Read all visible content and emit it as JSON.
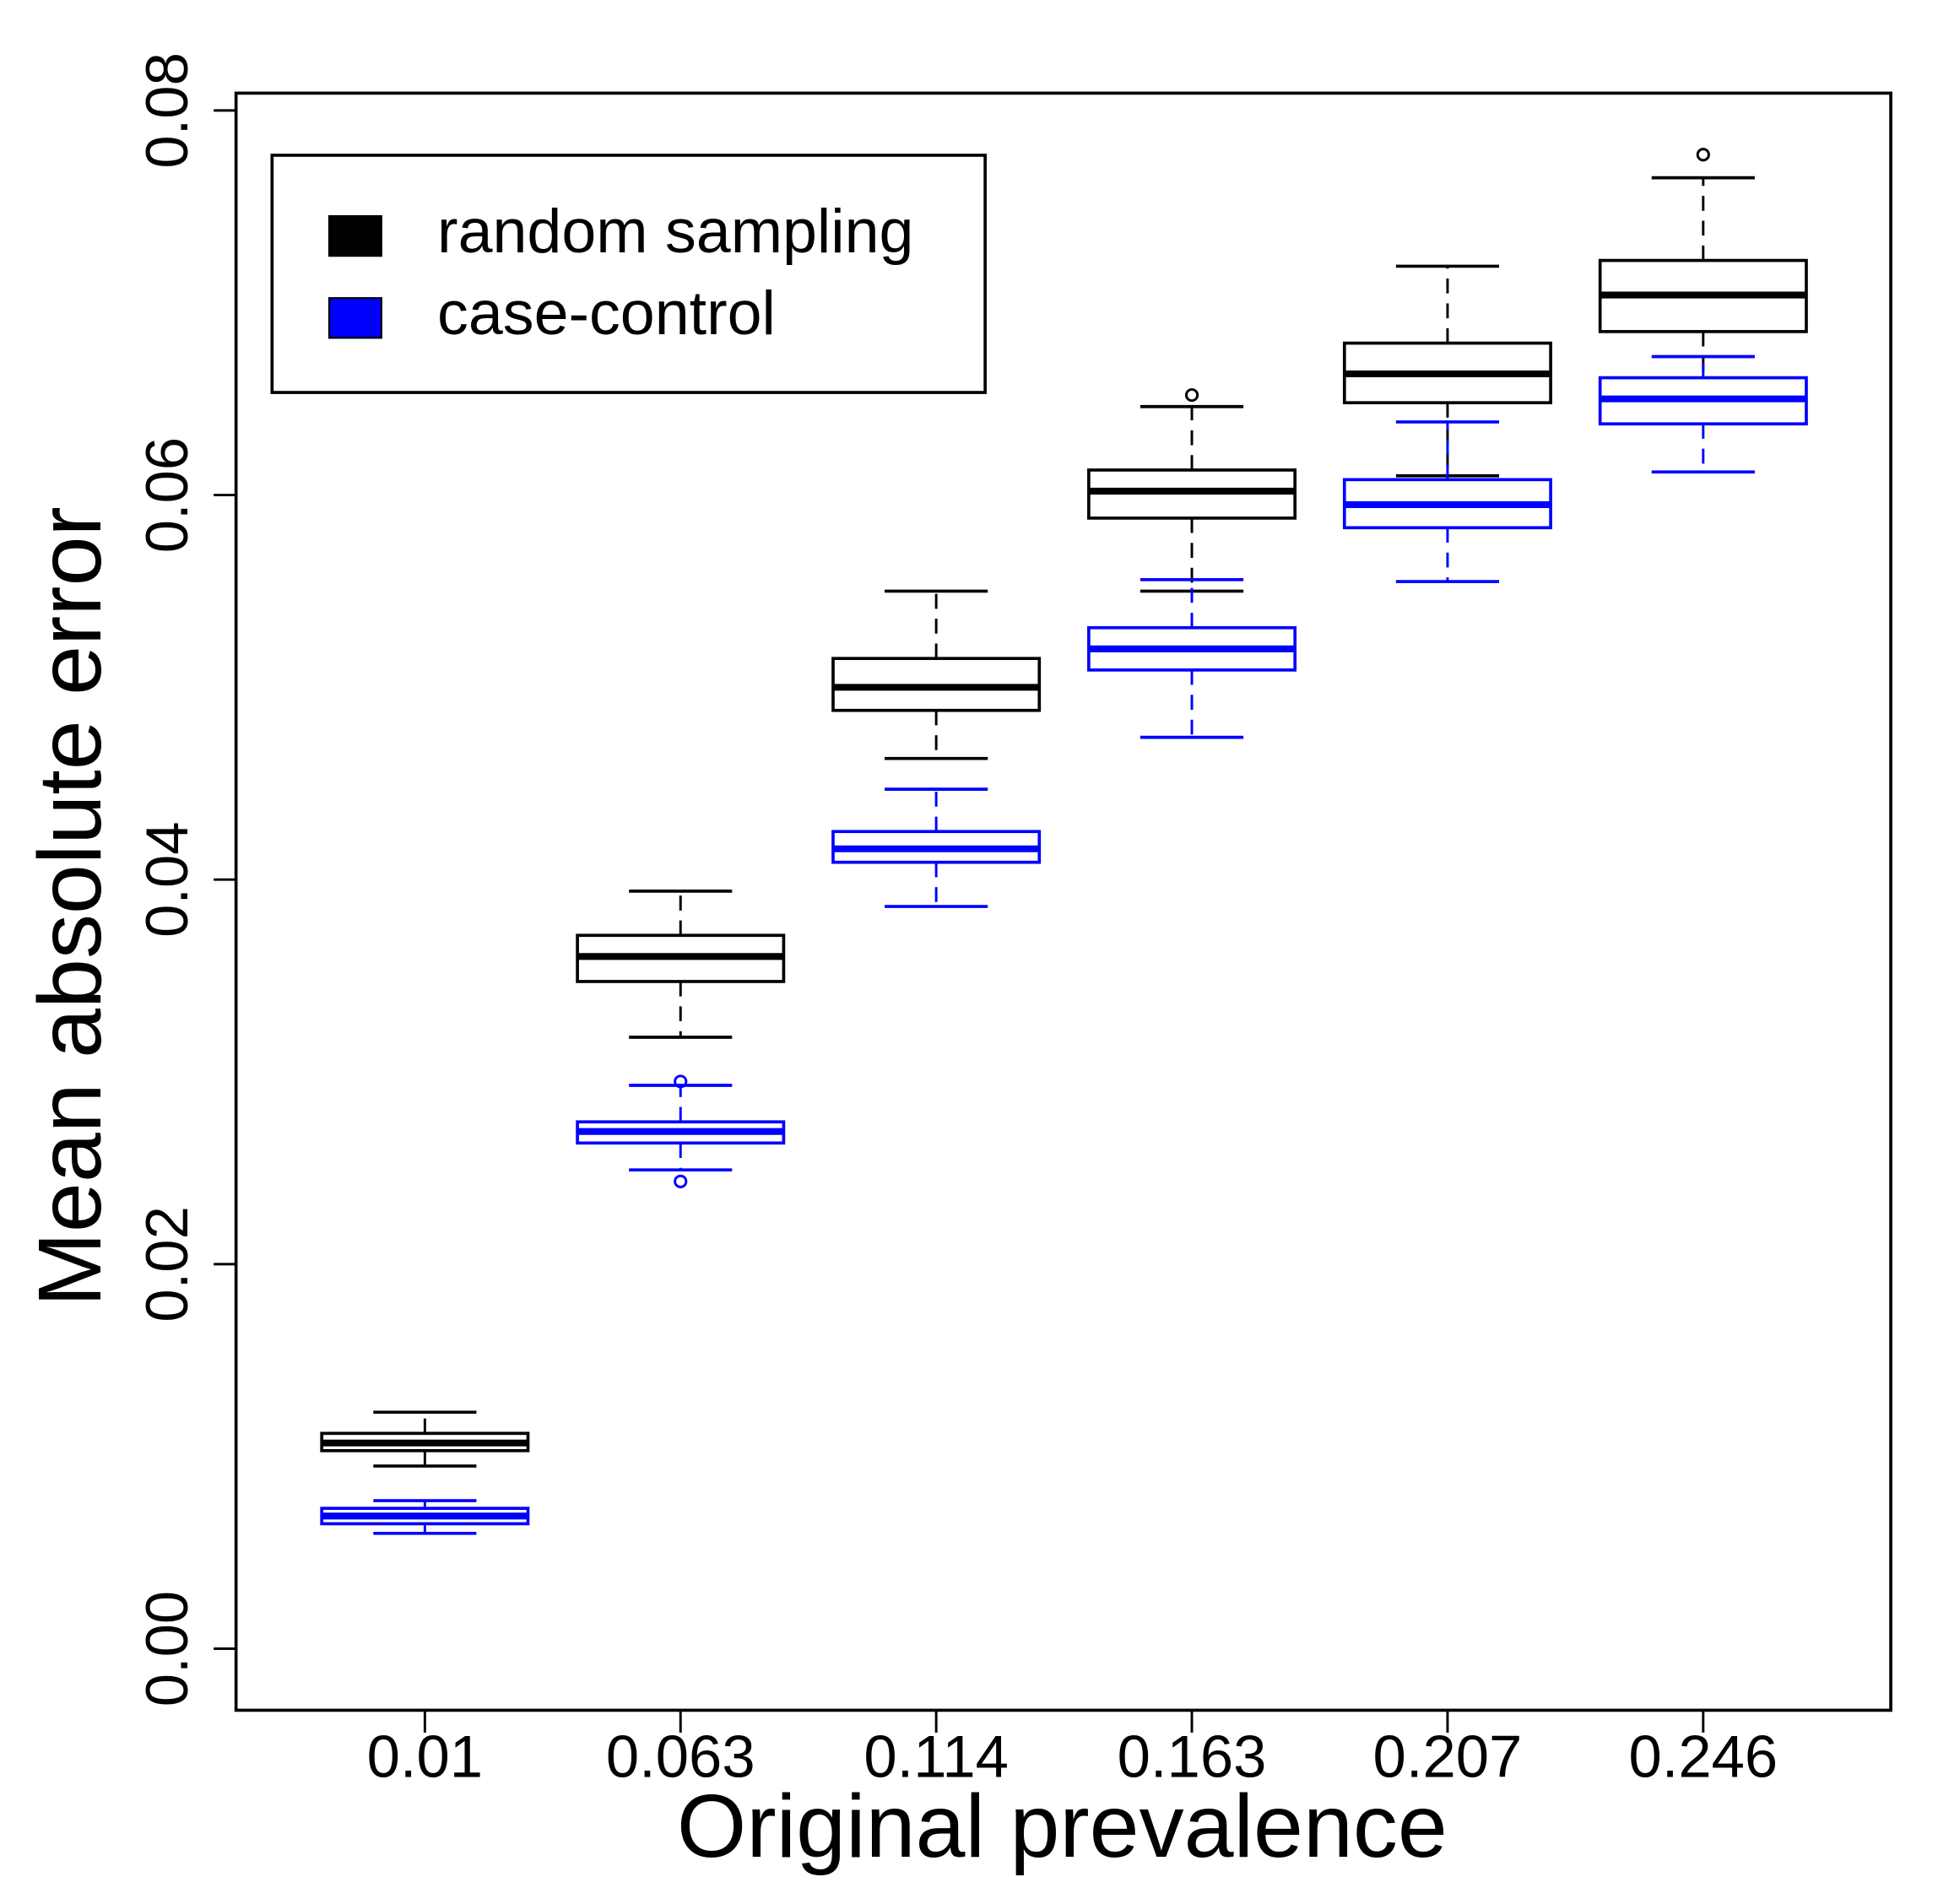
{
  "chart_data": {
    "type": "boxplot",
    "x_label": "Original prevalence",
    "y_label": "Mean absolute error",
    "categories": [
      "0.01",
      "0.063",
      "0.114",
      "0.163",
      "0.207",
      "0.246"
    ],
    "ylim": [
      -0.0032,
      0.0809
    ],
    "yticks": [
      {
        "value": 0,
        "label": "0.00"
      },
      0.02,
      0.04,
      0.06,
      0.08
    ],
    "legend": "topleft",
    "series": [
      {
        "name": "random sampling",
        "color": "#000000",
        "values": [
          {
            "low": 0.0095,
            "q1": 0.0103,
            "median": 0.0107,
            "q3": 0.0112,
            "high": 0.0123,
            "outliers": []
          },
          {
            "low": 0.0318,
            "q1": 0.0347,
            "median": 0.036,
            "q3": 0.0371,
            "high": 0.0394,
            "outliers": []
          },
          {
            "low": 0.0463,
            "q1": 0.0488,
            "median": 0.05,
            "q3": 0.0515,
            "high": 0.055,
            "outliers": []
          },
          {
            "low": 0.055,
            "q1": 0.0588,
            "median": 0.0602,
            "q3": 0.0613,
            "high": 0.0646,
            "outliers": [
              0.0652
            ]
          },
          {
            "low": 0.061,
            "q1": 0.0648,
            "median": 0.0663,
            "q3": 0.0679,
            "high": 0.0719,
            "outliers": []
          },
          {
            "low": 0.0639,
            "q1": 0.0685,
            "median": 0.0704,
            "q3": 0.0722,
            "high": 0.0765,
            "outliers": [
              0.0777
            ]
          }
        ]
      },
      {
        "name": "case-control",
        "color": "#0000ff",
        "values": [
          {
            "low": 0.006,
            "q1": 0.0065,
            "median": 0.0069,
            "q3": 0.0073,
            "high": 0.0077,
            "outliers": []
          },
          {
            "low": 0.0249,
            "q1": 0.0263,
            "median": 0.0269,
            "q3": 0.0274,
            "high": 0.0293,
            "outliers": [
              0.0295,
              0.0243
            ]
          },
          {
            "low": 0.0386,
            "q1": 0.0409,
            "median": 0.0416,
            "q3": 0.0425,
            "high": 0.0447,
            "outliers": []
          },
          {
            "low": 0.0474,
            "q1": 0.0509,
            "median": 0.052,
            "q3": 0.0531,
            "high": 0.0556,
            "outliers": []
          },
          {
            "low": 0.0555,
            "q1": 0.0583,
            "median": 0.0595,
            "q3": 0.0608,
            "high": 0.0638,
            "outliers": []
          },
          {
            "low": 0.0612,
            "q1": 0.0637,
            "median": 0.065,
            "q3": 0.0661,
            "high": 0.0672,
            "outliers": []
          }
        ]
      }
    ]
  }
}
